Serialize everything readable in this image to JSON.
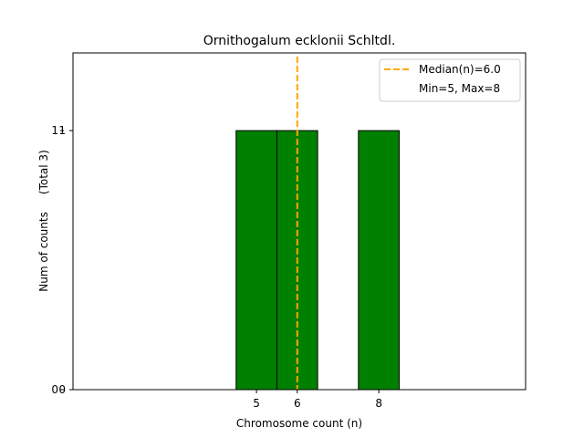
{
  "chart_data": {
    "type": "bar",
    "title": "Ornithogalum ecklonii Schltdl.",
    "xlabel": "Chromosome count (n)",
    "ylabel": "Num of counts     (Total 3)",
    "x_ticks": [
      5,
      6,
      8
    ],
    "y_ticks": [
      0,
      1
    ],
    "xlim": [
      0.5,
      11.6
    ],
    "ylim": [
      0,
      1.3
    ],
    "bar_width": 1,
    "bars": [
      {
        "x": 5,
        "value": 1
      },
      {
        "x": 6,
        "value": 1
      },
      {
        "x": 8,
        "value": 1
      }
    ],
    "bar_color": "#008000",
    "baseline_xlim": [
      0.5,
      11.2
    ],
    "median": {
      "value": 6.0,
      "color": "#ffa500",
      "style": "dashed"
    },
    "legend": {
      "position": "top-right",
      "entries": [
        "Median(n)=6.0",
        "Min=5, Max=8"
      ]
    },
    "grid": false
  }
}
